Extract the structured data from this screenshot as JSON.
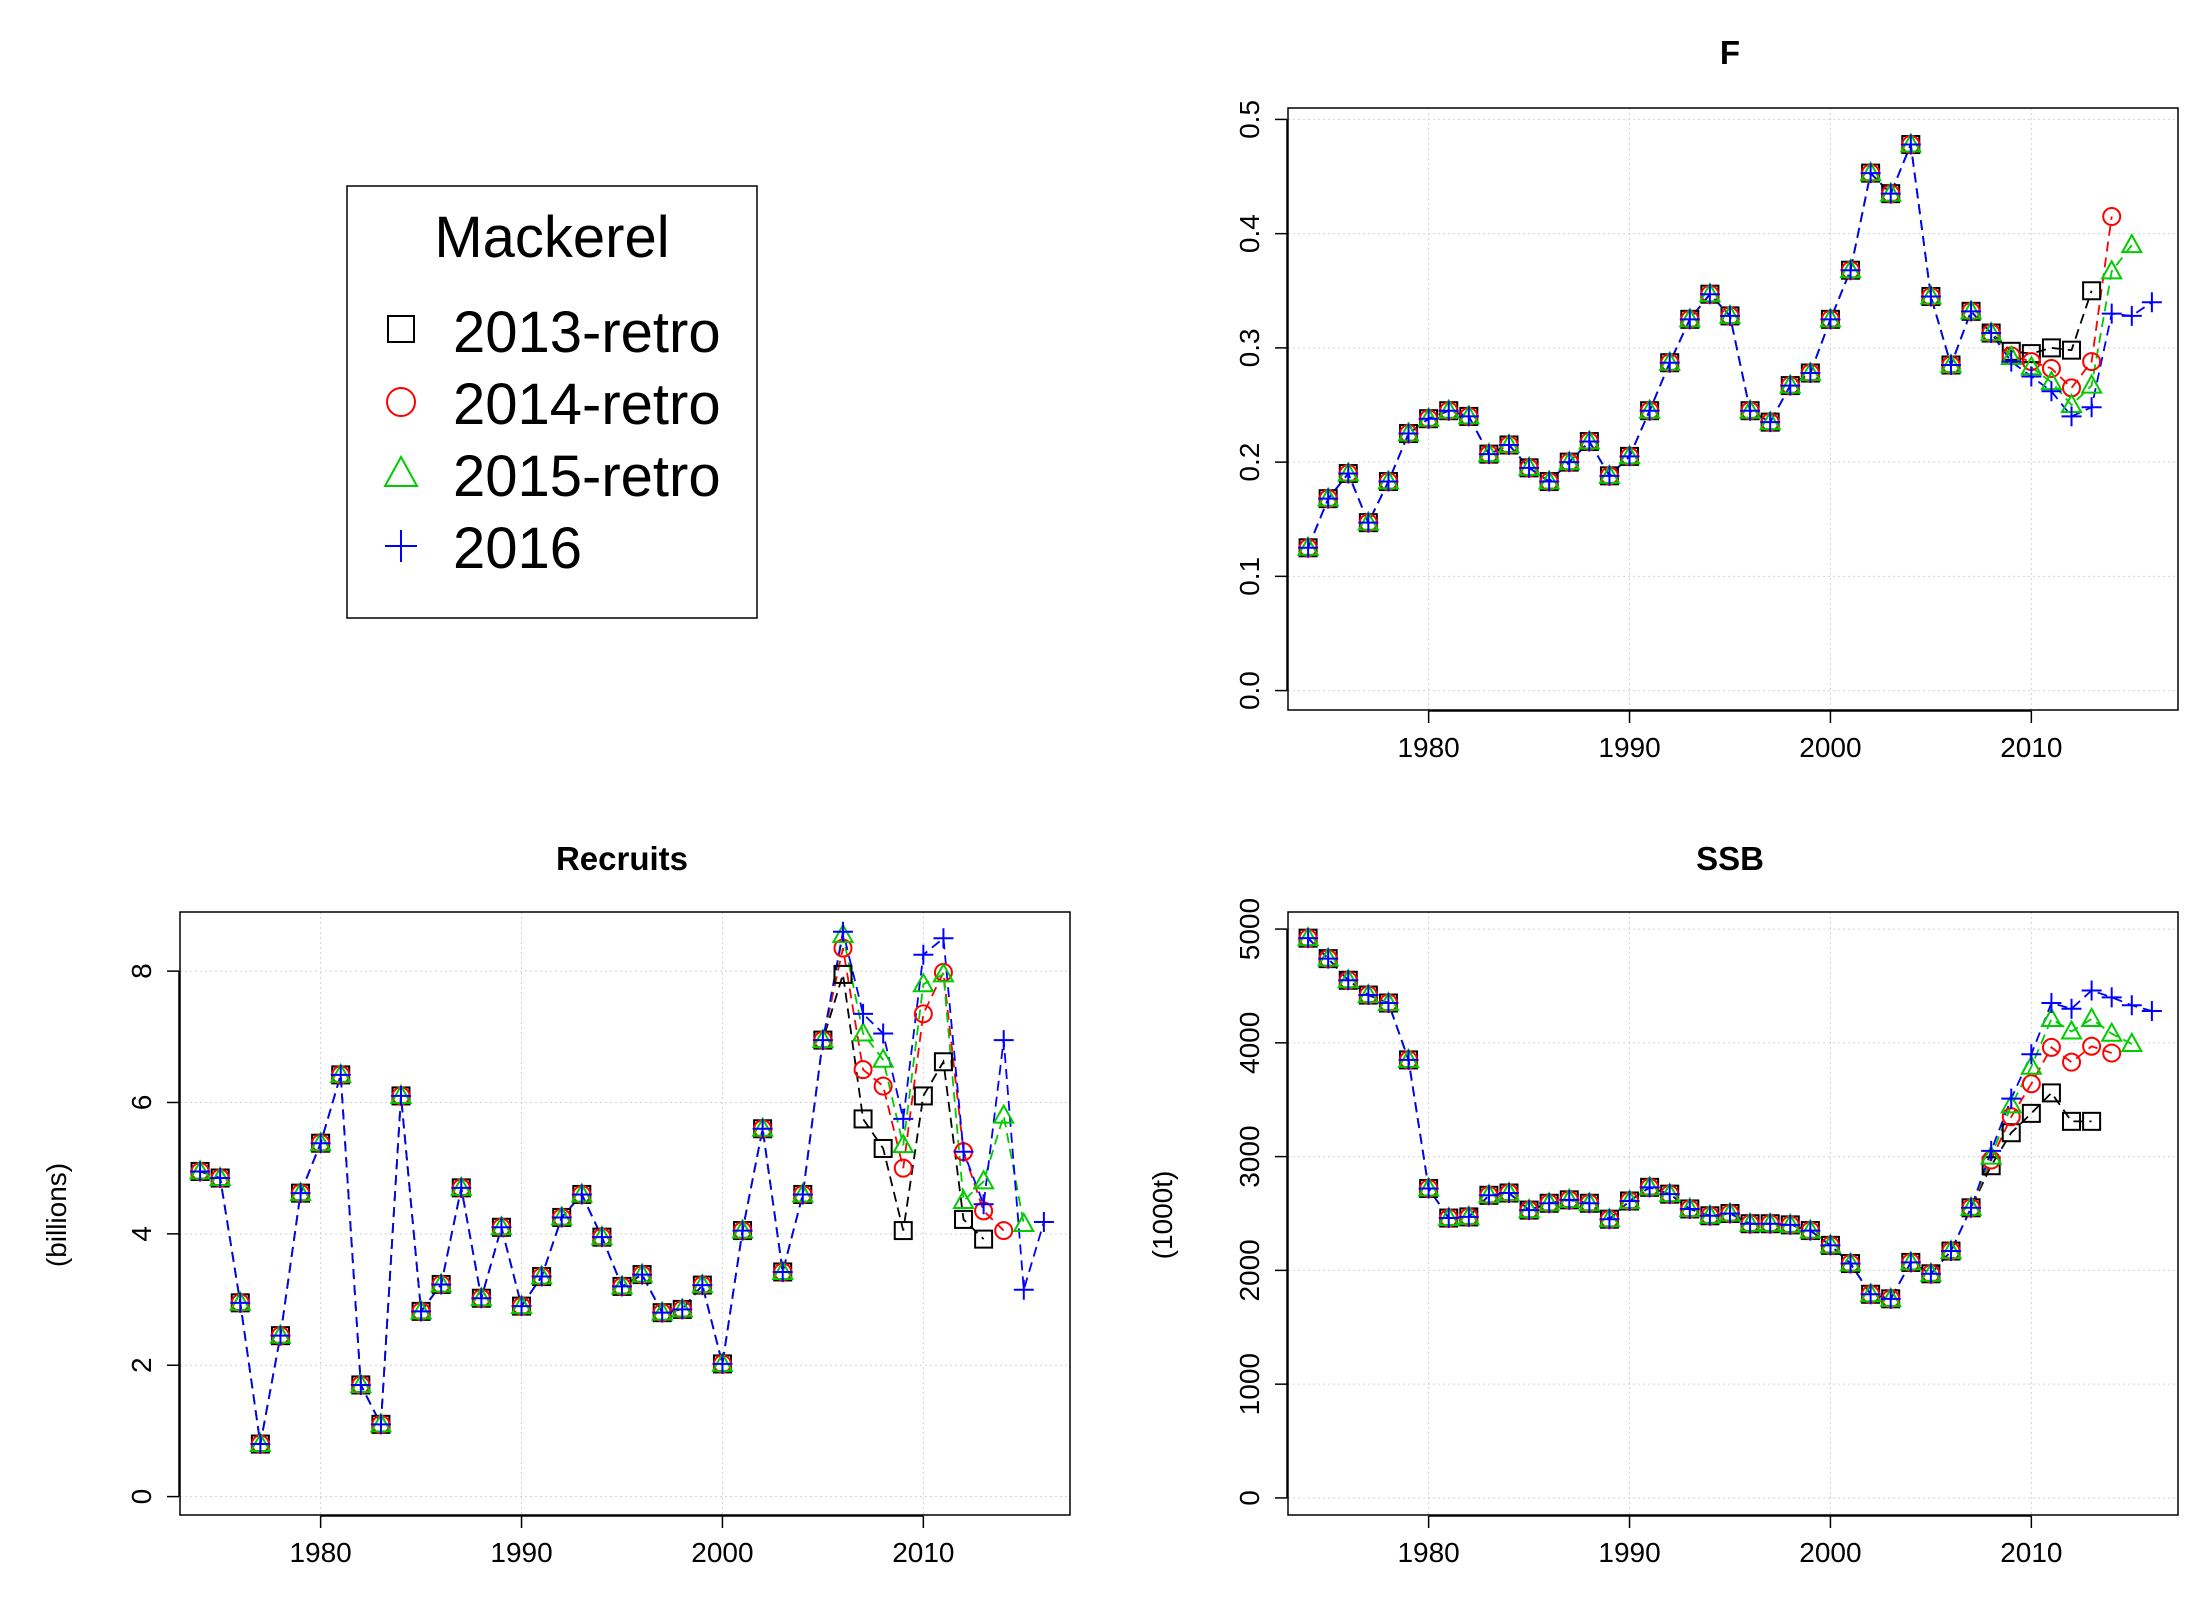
{
  "legend": {
    "title": "Mackerel",
    "entries": [
      {
        "label": "2013-retro",
        "color": "#000000",
        "symbol": "square"
      },
      {
        "label": "2014-retro",
        "color": "#ff0000",
        "symbol": "circle"
      },
      {
        "label": "2015-retro",
        "color": "#00cc00",
        "symbol": "triangle"
      },
      {
        "label": "2016",
        "color": "#0000ff",
        "symbol": "plus"
      }
    ]
  },
  "chart_data": [
    {
      "id": "F",
      "type": "line",
      "title": "F",
      "xlabel": "",
      "ylabel": "",
      "xlim": [
        1974,
        2016
      ],
      "ylim": [
        0,
        0.5
      ],
      "xticks": [
        1980,
        1990,
        2000,
        2010
      ],
      "yticks": [
        0.0,
        0.1,
        0.2,
        0.3,
        0.4,
        0.5
      ],
      "ytick_labels": [
        "0.0",
        "0.1",
        "0.2",
        "0.3",
        "0.4",
        "0.5"
      ],
      "rotate_y_ticks": true,
      "grid": true,
      "x_start": 1974,
      "base": [
        0.125,
        0.168,
        0.19,
        0.147,
        0.183,
        0.225,
        0.238,
        0.245,
        0.24,
        0.207,
        0.215,
        0.195,
        0.183,
        0.2,
        0.218,
        0.188,
        0.205,
        0.245,
        0.287,
        0.325,
        0.347,
        0.328,
        0.245,
        0.235,
        0.267,
        0.278,
        0.325,
        0.368,
        0.453,
        0.435,
        0.478,
        0.345,
        0.285,
        0.332,
        0.313
      ],
      "series": [
        {
          "name": "2013-retro",
          "color": "#000000",
          "symbol": "square",
          "tail": [
            0.297,
            0.295,
            0.3,
            0.298,
            0.35
          ]
        },
        {
          "name": "2014-retro",
          "color": "#ff0000",
          "symbol": "circle",
          "tail": [
            0.293,
            0.288,
            0.282,
            0.265,
            0.288,
            0.415
          ]
        },
        {
          "name": "2015-retro",
          "color": "#00cc00",
          "symbol": "triangle",
          "tail": [
            0.292,
            0.283,
            0.27,
            0.25,
            0.267,
            0.367,
            0.39
          ]
        },
        {
          "name": "2016",
          "color": "#0000ff",
          "symbol": "plus",
          "tail": [
            0.288,
            0.275,
            0.262,
            0.24,
            0.248,
            0.33,
            0.328,
            0.34
          ]
        }
      ]
    },
    {
      "id": "Recruits",
      "type": "line",
      "title": "Recruits",
      "xlabel": "",
      "ylabel": "(billions)",
      "xlim": [
        1974,
        2016
      ],
      "ylim": [
        0,
        8.6
      ],
      "xticks": [
        1980,
        1990,
        2000,
        2010
      ],
      "yticks": [
        0,
        2,
        4,
        6,
        8
      ],
      "ytick_labels": [
        "0",
        "2",
        "4",
        "6",
        "8"
      ],
      "rotate_y_ticks": true,
      "grid": true,
      "x_start": 1974,
      "base": [
        4.95,
        4.85,
        2.95,
        0.8,
        2.45,
        4.62,
        5.38,
        6.42,
        1.7,
        1.1,
        6.1,
        2.82,
        3.23,
        4.7,
        3.02,
        4.1,
        2.9,
        3.35,
        4.25,
        4.6,
        3.95,
        3.2,
        3.38,
        2.8,
        2.85,
        3.22,
        2.02,
        4.05,
        5.6,
        3.42,
        4.6,
        6.95
      ],
      "series": [
        {
          "name": "2013-retro",
          "color": "#000000",
          "symbol": "square",
          "tail": [
            7.95,
            5.75,
            5.3,
            4.05,
            6.1,
            6.62,
            4.22,
            3.92
          ]
        },
        {
          "name": "2014-retro",
          "color": "#ff0000",
          "symbol": "circle",
          "tail": [
            8.35,
            6.5,
            6.25,
            5.0,
            7.35,
            7.98,
            5.25,
            4.35,
            4.05
          ]
        },
        {
          "name": "2015-retro",
          "color": "#00cc00",
          "symbol": "triangle",
          "tail": [
            8.55,
            7.05,
            6.65,
            5.35,
            7.8,
            7.95,
            4.5,
            4.8,
            5.8,
            4.15
          ]
        },
        {
          "name": "2016",
          "color": "#0000ff",
          "symbol": "plus",
          "tail": [
            8.6,
            7.35,
            7.05,
            5.75,
            8.25,
            8.5,
            5.25,
            4.45,
            6.95,
            3.15,
            4.18
          ]
        }
      ]
    },
    {
      "id": "SSB",
      "type": "line",
      "title": "SSB",
      "xlabel": "",
      "ylabel": "(1000t)",
      "xlim": [
        1974,
        2016
      ],
      "ylim": [
        0,
        4940
      ],
      "xticks": [
        1980,
        1990,
        2000,
        2010
      ],
      "yticks": [
        0,
        1000,
        2000,
        3000,
        4000,
        5000
      ],
      "ytick_labels": [
        "0",
        "1000",
        "2000",
        "3000",
        "4000",
        "5000"
      ],
      "rotate_y_ticks": true,
      "grid": true,
      "x_start": 1974,
      "base": [
        4920,
        4740,
        4550,
        4420,
        4350,
        3850,
        2720,
        2460,
        2470,
        2660,
        2680,
        2530,
        2590,
        2620,
        2590,
        2450,
        2610,
        2730,
        2670,
        2540,
        2480,
        2500,
        2410,
        2410,
        2400,
        2350,
        2220,
        2060,
        1790,
        1750,
        2070,
        1970,
        2170,
        2550
      ],
      "series": [
        {
          "name": "2013-retro",
          "color": "#000000",
          "symbol": "square",
          "tail": [
            2920,
            3210,
            3380,
            3560,
            3310,
            3310
          ]
        },
        {
          "name": "2014-retro",
          "color": "#ff0000",
          "symbol": "circle",
          "tail": [
            2970,
            3350,
            3640,
            3960,
            3830,
            3970,
            3910
          ]
        },
        {
          "name": "2015-retro",
          "color": "#00cc00",
          "symbol": "triangle",
          "tail": [
            3000,
            3450,
            3790,
            4210,
            4100,
            4210,
            4080,
            3990
          ]
        },
        {
          "name": "2016",
          "color": "#0000ff",
          "symbol": "plus",
          "tail": [
            3050,
            3510,
            3900,
            4350,
            4300,
            4460,
            4400,
            4330,
            4280
          ]
        }
      ]
    }
  ]
}
